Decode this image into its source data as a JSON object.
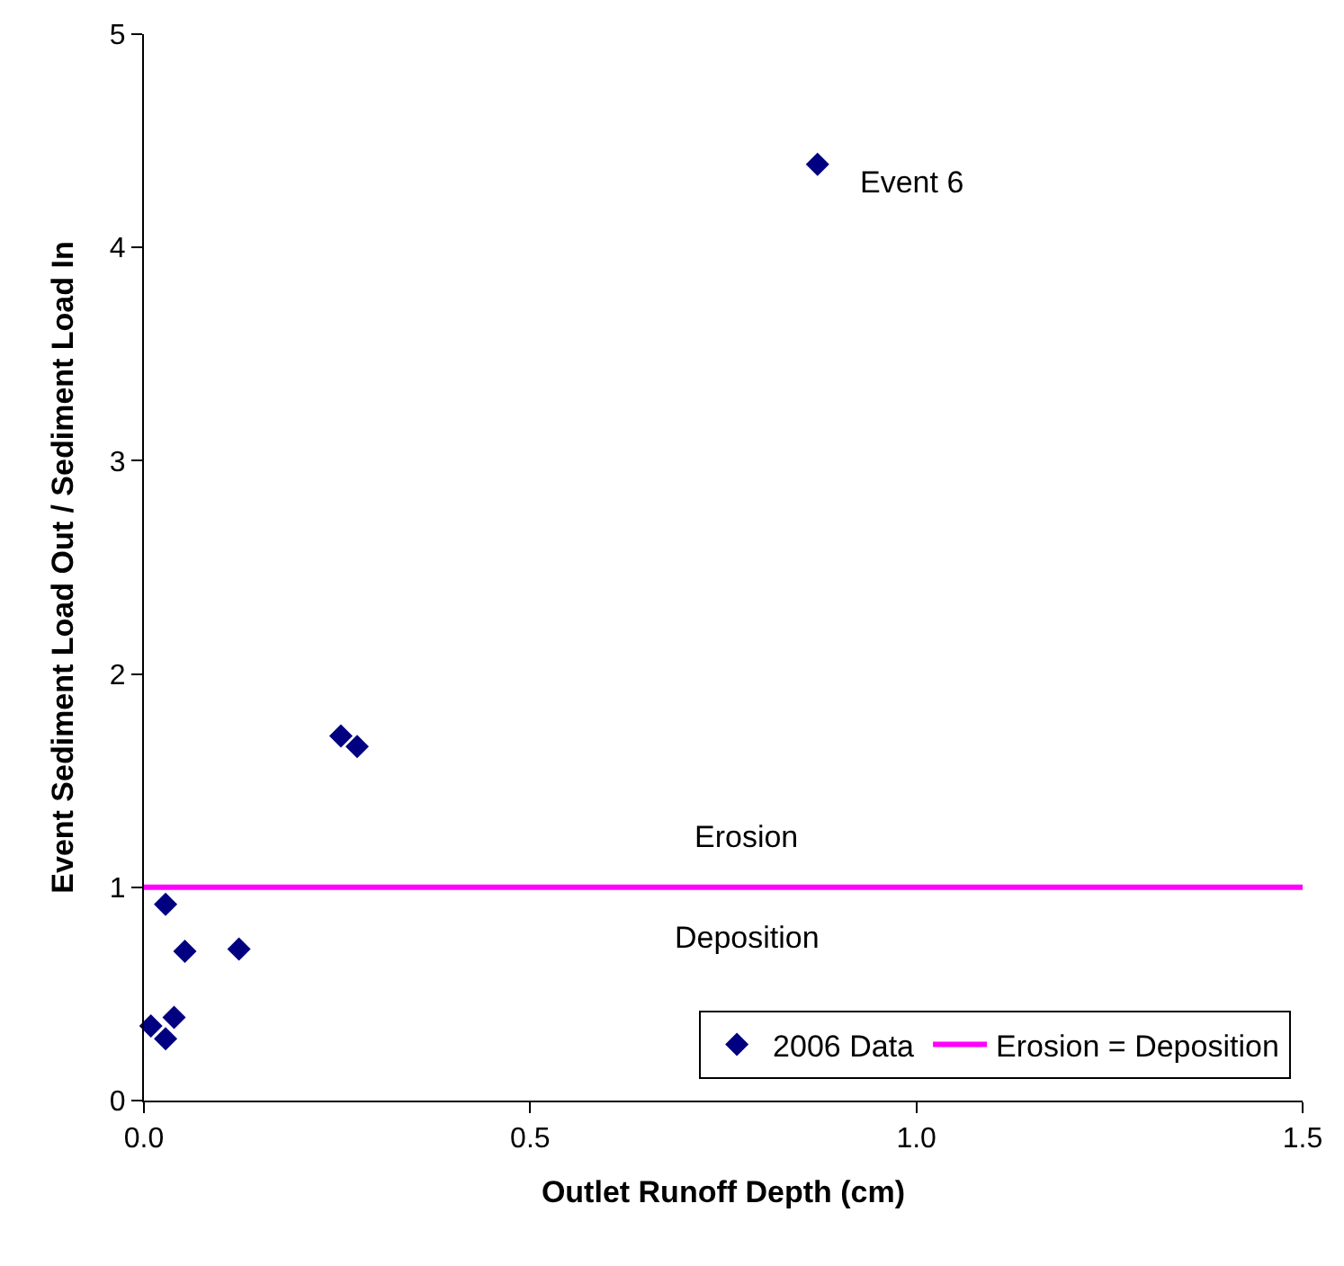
{
  "chart_data": {
    "type": "scatter",
    "xlabel": "Outlet Runoff Depth (cm)",
    "ylabel": "Event Sediment Load Out / Sediment Load In",
    "x": [
      0.009,
      0.028,
      0.028,
      0.039,
      0.053,
      0.123,
      0.255,
      0.276,
      0.872
    ],
    "series": [
      {
        "name": "2006 Data",
        "color": "#000080",
        "values": [
          0.35,
          0.92,
          0.29,
          0.39,
          0.7,
          0.71,
          1.71,
          1.66,
          4.39
        ]
      }
    ],
    "marker": "diamond",
    "ref_lines": [
      {
        "axis": "y",
        "value": 1,
        "label": "Erosion = Deposition",
        "color": "#ff00ff"
      }
    ],
    "annotations": [
      {
        "text": "Event 6",
        "x": 0.872,
        "y": 4.39
      },
      "Erosion",
      "Deposition"
    ],
    "xlim": [
      0,
      1.5
    ],
    "xticks": [
      {
        "value": 0,
        "label": "0.0"
      },
      0.5,
      {
        "value": 1,
        "label": "1.0"
      },
      1.5
    ],
    "ylim": [
      0,
      5
    ],
    "yticks": [
      0,
      1,
      2,
      3,
      4,
      5
    ],
    "grid": false,
    "legend": "bottom right"
  }
}
